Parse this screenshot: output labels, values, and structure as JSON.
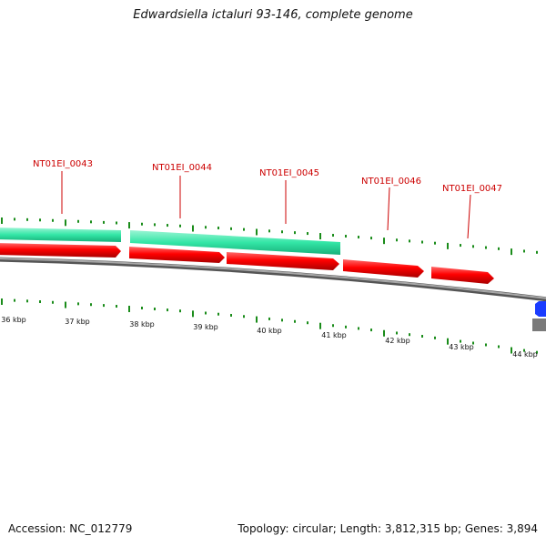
{
  "title": "Edwardsiella ictaluri 93-146, complete genome",
  "footer": {
    "accession": "Accession: NC_012779",
    "summary": "Topology: circular; Length: 3,812,315 bp; Genes: 3,894"
  },
  "colors": {
    "cds_forward": "#ff0000",
    "gene_bar": "#33e6a6",
    "backbone": "#7a7a7a",
    "tick": "#1a8c1a",
    "label_red": "#cc0000",
    "other_feature": "#1a3cff"
  },
  "icons": {
    "cds": "forward-arrow",
    "gene": "bar",
    "other": "hexagon"
  },
  "gene_labels": [
    "NT01EI_0043",
    "NT01EI_0044",
    "NT01EI_0045",
    "NT01EI_0046",
    "NT01EI_0047"
  ],
  "kbp_labels": [
    "36 kbp",
    "37 kbp",
    "38 kbp",
    "39 kbp",
    "40 kbp",
    "41 kbp",
    "42 kbp",
    "43 kbp",
    "44 kbp"
  ]
}
